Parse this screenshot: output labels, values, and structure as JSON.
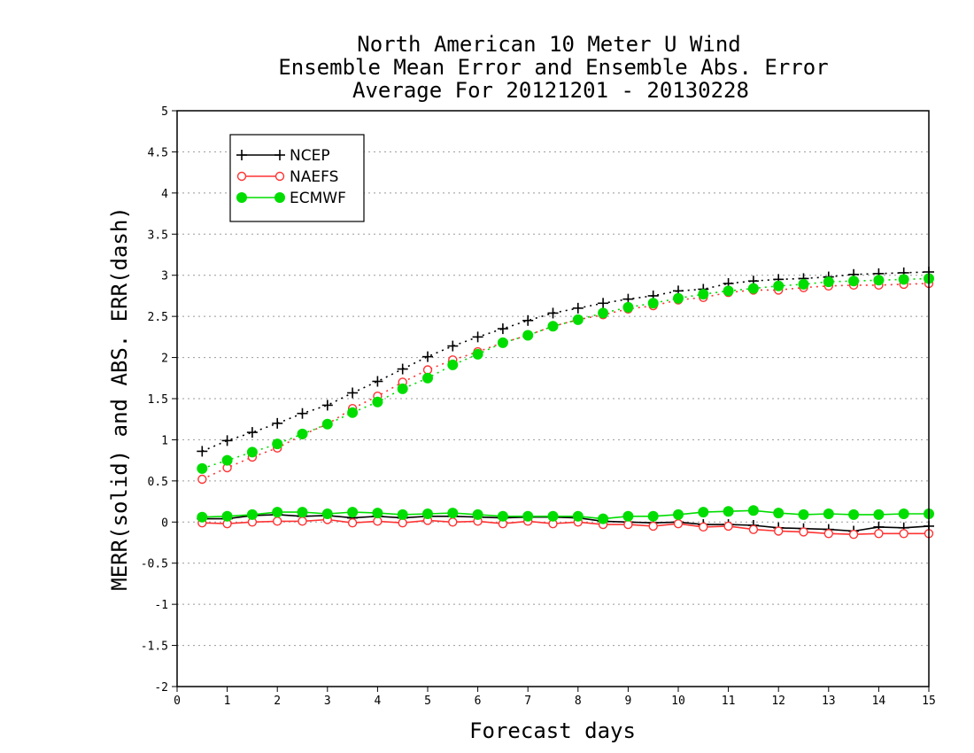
{
  "chart_data": {
    "type": "line",
    "title": [
      "North American 10 Meter U Wind",
      "Ensemble Mean Error and Ensemble Abs. Error",
      "Average For 20121201 - 20130228"
    ],
    "xlabel": "Forecast days",
    "ylabel": "MERR(solid) and ABS. ERR(dash)",
    "xlim": [
      0,
      15
    ],
    "ylim": [
      -2,
      5
    ],
    "xticks": [
      "0",
      "1",
      "2",
      "3",
      "4",
      "5",
      "6",
      "7",
      "8",
      "9",
      "10",
      "11",
      "12",
      "13",
      "14",
      "15"
    ],
    "yticks": [
      "5",
      "4.5",
      "4",
      "3.5",
      "3",
      "2.5",
      "2",
      "1.5",
      "1",
      "0.5",
      "0",
      "-0.5",
      "-1",
      "-1.5",
      "-2"
    ],
    "grid": "horizontal dotted",
    "legend_position": "top-left",
    "x": [
      0.5,
      1,
      1.5,
      2,
      2.5,
      3,
      3.5,
      4,
      4.5,
      5,
      5.5,
      6,
      6.5,
      7,
      7.5,
      8,
      8.5,
      9,
      9.5,
      10,
      10.5,
      11,
      11.5,
      12,
      12.5,
      13,
      13.5,
      14,
      14.5,
      15
    ],
    "series": [
      {
        "name": "NCEP",
        "color": "#000000",
        "marker": "plus",
        "abs_error": [
          0.86,
          0.99,
          1.09,
          1.2,
          1.32,
          1.42,
          1.57,
          1.71,
          1.86,
          2.01,
          2.14,
          2.25,
          2.35,
          2.45,
          2.54,
          2.6,
          2.66,
          2.71,
          2.75,
          2.81,
          2.83,
          2.9,
          2.93,
          2.95,
          2.96,
          2.98,
          3.01,
          3.02,
          3.03,
          3.04
        ],
        "mean_error": [
          0.04,
          0.04,
          0.08,
          0.09,
          0.07,
          0.08,
          0.05,
          0.07,
          0.05,
          0.07,
          0.07,
          0.06,
          0.05,
          0.06,
          0.06,
          0.05,
          0.01,
          0.0,
          -0.01,
          0.0,
          -0.03,
          -0.03,
          -0.04,
          -0.07,
          -0.08,
          -0.09,
          -0.11,
          -0.06,
          -0.07,
          -0.05
        ]
      },
      {
        "name": "NAEFS",
        "color": "#ff3333",
        "marker": "open-circle",
        "abs_error": [
          0.52,
          0.66,
          0.79,
          0.9,
          1.06,
          1.19,
          1.38,
          1.53,
          1.7,
          1.85,
          1.97,
          2.07,
          2.18,
          2.27,
          2.38,
          2.46,
          2.52,
          2.59,
          2.63,
          2.7,
          2.73,
          2.79,
          2.82,
          2.82,
          2.85,
          2.87,
          2.88,
          2.88,
          2.89,
          2.9
        ],
        "mean_error": [
          -0.01,
          -0.02,
          0.0,
          0.01,
          0.01,
          0.03,
          -0.01,
          0.01,
          -0.01,
          0.02,
          0.0,
          0.01,
          -0.02,
          0.01,
          -0.02,
          0.0,
          -0.03,
          -0.03,
          -0.05,
          -0.02,
          -0.06,
          -0.05,
          -0.09,
          -0.11,
          -0.12,
          -0.14,
          -0.15,
          -0.14,
          -0.14,
          -0.14
        ]
      },
      {
        "name": "ECMWF",
        "color": "#00dd00",
        "marker": "filled-circle",
        "abs_error": [
          0.65,
          0.75,
          0.85,
          0.95,
          1.07,
          1.19,
          1.33,
          1.46,
          1.62,
          1.75,
          1.91,
          2.04,
          2.18,
          2.27,
          2.38,
          2.46,
          2.54,
          2.61,
          2.66,
          2.72,
          2.77,
          2.81,
          2.84,
          2.87,
          2.89,
          2.92,
          2.93,
          2.94,
          2.95,
          2.96
        ],
        "mean_error": [
          0.06,
          0.07,
          0.09,
          0.12,
          0.12,
          0.1,
          0.12,
          0.11,
          0.09,
          0.1,
          0.11,
          0.09,
          0.07,
          0.07,
          0.07,
          0.07,
          0.04,
          0.07,
          0.07,
          0.09,
          0.12,
          0.13,
          0.14,
          0.11,
          0.09,
          0.1,
          0.09,
          0.09,
          0.1,
          0.1
        ]
      }
    ]
  }
}
